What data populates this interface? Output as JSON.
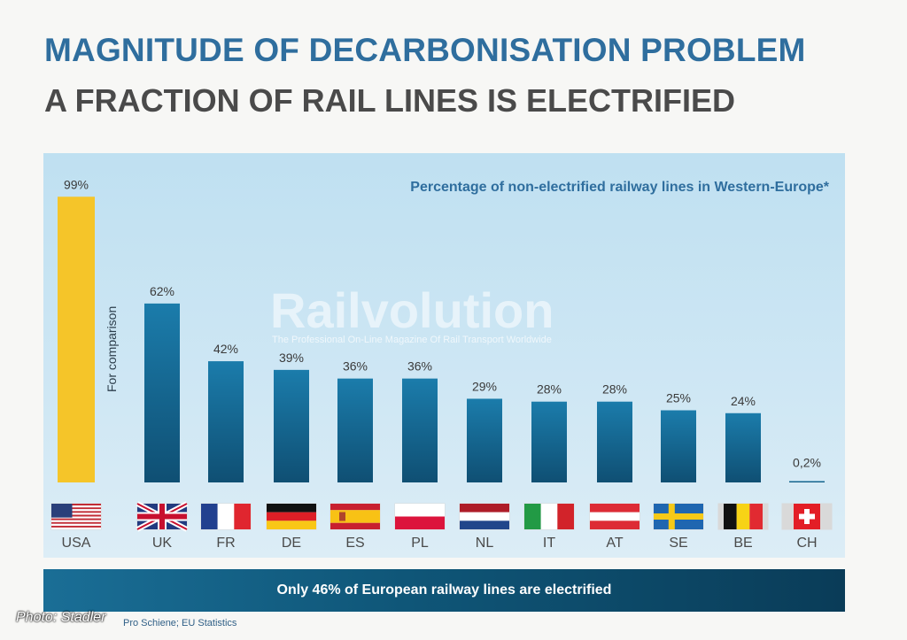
{
  "title": "MAGNITUDE OF DECARBONISATION PROBLEM",
  "subtitle": "A FRACTION OF RAIL LINES IS ELECTRIFIED",
  "footer": "Only 46% of European railway lines are electrified",
  "source": "Pro Schiene; EU Statistics",
  "credit": "Photo: Stadler",
  "watermark": {
    "brand": "Railvolution",
    "tagline": "The Professional On-Line Magazine Of Rail Transport Worldwide"
  },
  "colors": {
    "title": "#2f6e9e",
    "bar": "#1b7aa8",
    "comparison_bar": "#f5c529",
    "chart_title": "#2f6e9e"
  },
  "chart_data": {
    "type": "bar",
    "title": "Percentage of non-electrified railway lines in Western-Europe*",
    "comparison_label": "For comparison",
    "categories": [
      "USA",
      "UK",
      "FR",
      "DE",
      "ES",
      "PL",
      "NL",
      "IT",
      "AT",
      "SE",
      "BE",
      "CH"
    ],
    "values": [
      99,
      62,
      42,
      39,
      36,
      36,
      29,
      28,
      28,
      25,
      24,
      0.2
    ],
    "value_labels": [
      "99%",
      "62%",
      "42%",
      "39%",
      "36%",
      "36%",
      "29%",
      "28%",
      "28%",
      "25%",
      "24%",
      "0,2%"
    ],
    "comparison_category": "USA",
    "flags": [
      "flag-usa",
      "flag-uk",
      "flag-france",
      "flag-germany",
      "flag-spain",
      "flag-poland",
      "flag-netherlands",
      "flag-italy",
      "flag-austria",
      "flag-sweden",
      "flag-belgium",
      "flag-switzerland"
    ],
    "ylim": [
      0,
      100
    ],
    "grid": false,
    "legend": "none"
  }
}
